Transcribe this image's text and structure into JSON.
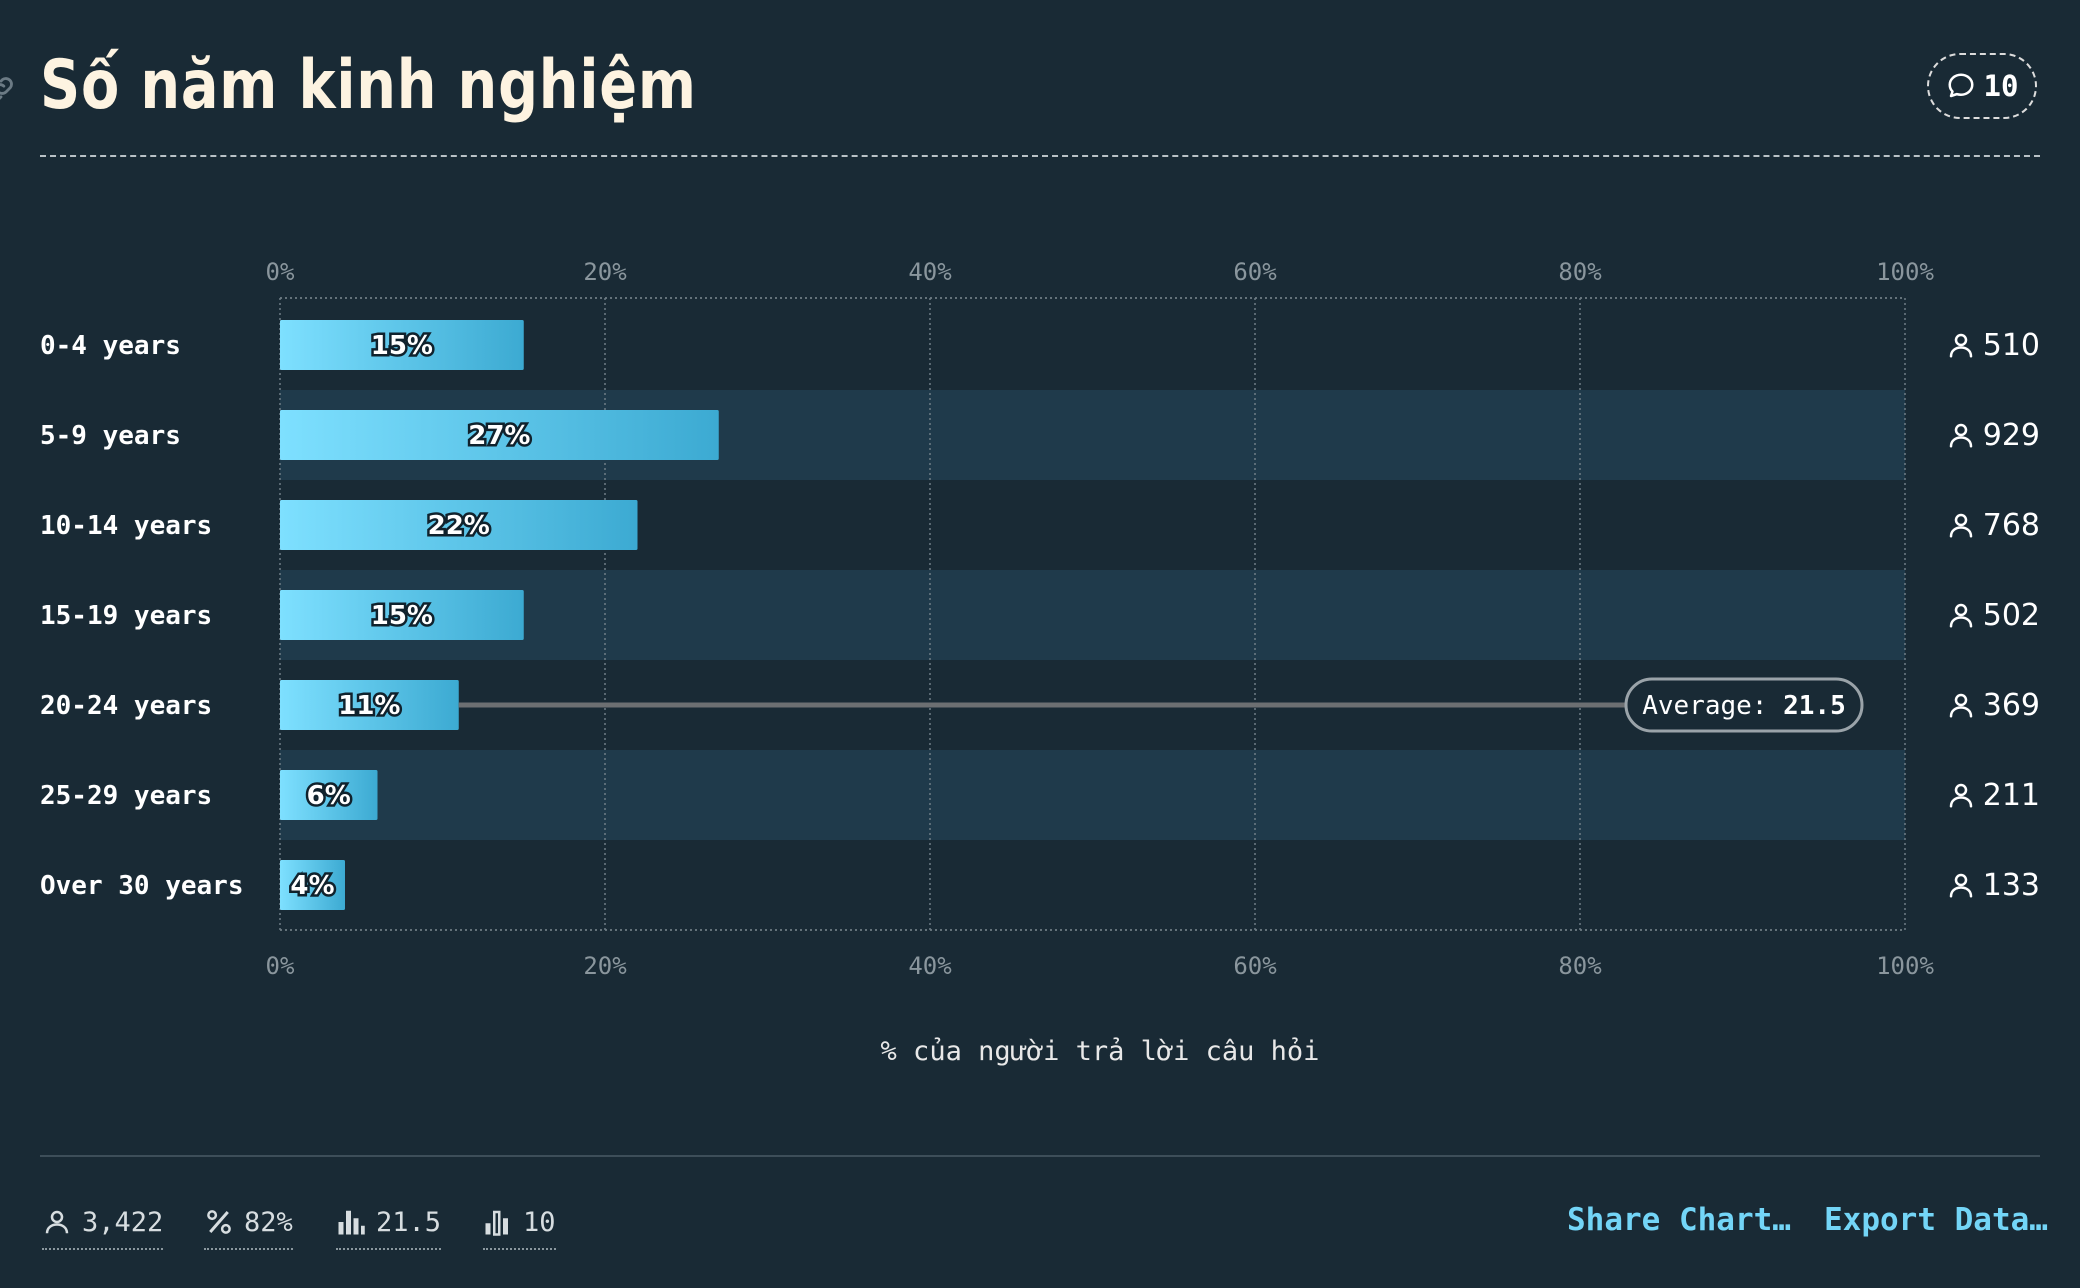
{
  "header": {
    "title": "Số năm kinh nghiệm",
    "comment_count": "10",
    "link_icon": "link-icon",
    "comment_icon": "comment-icon"
  },
  "chart_data": {
    "type": "bar",
    "orientation": "horizontal",
    "categories": [
      "0-4 years",
      "5-9 years",
      "10-14 years",
      "15-19 years",
      "20-24 years",
      "25-29 years",
      "Over 30 years"
    ],
    "values": [
      15,
      27,
      22,
      15,
      11,
      6,
      4
    ],
    "value_labels": [
      "15%",
      "27%",
      "22%",
      "15%",
      "11%",
      "6%",
      "4%"
    ],
    "counts": [
      "510",
      "929",
      "768",
      "502",
      "369",
      "211",
      "133"
    ],
    "xlim": [
      0,
      100
    ],
    "x_ticks": [
      "0%",
      "20%",
      "40%",
      "60%",
      "80%",
      "100%"
    ],
    "xlabel": "% của người trả lời câu hỏi",
    "average": {
      "label": "Average:",
      "value": "21.5",
      "row": 4
    },
    "grid": true,
    "colors": {
      "bar_start": "#7ee0ff",
      "bar_end": "#3caad2",
      "band": "#1f3a4b",
      "background": "#192a35"
    }
  },
  "footer": {
    "stats": [
      {
        "icon": "user-icon",
        "value": "3,422"
      },
      {
        "icon": "percent-icon",
        "value": "82%"
      },
      {
        "icon": "bar-chart-icon",
        "value": "21.5"
      },
      {
        "icon": "bar-chart-outline-icon",
        "value": "10"
      }
    ],
    "share_label": "Share Chart…",
    "export_label": "Export Data…"
  }
}
